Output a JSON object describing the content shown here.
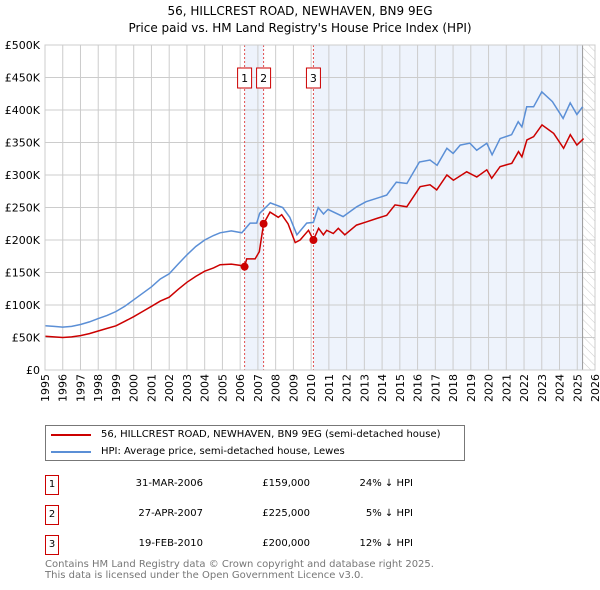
{
  "chart_data": {
    "type": "line",
    "title": "56, HILLCREST ROAD, NEWHAVEN, BN9 9EG",
    "subtitle": "Price paid vs. HM Land Registry's House Price Index (HPI)",
    "xlim": [
      1995,
      2026
    ],
    "ylim": [
      0,
      500000
    ],
    "grid": true,
    "x_ticks": [
      "1995",
      "1996",
      "1997",
      "1998",
      "1999",
      "2000",
      "2001",
      "2002",
      "2003",
      "2004",
      "2005",
      "2006",
      "2007",
      "2008",
      "2009",
      "2010",
      "2011",
      "2012",
      "2013",
      "2014",
      "2015",
      "2016",
      "2017",
      "2018",
      "2019",
      "2020",
      "2021",
      "2022",
      "2023",
      "2024",
      "2025",
      "2026"
    ],
    "y_ticks": [
      {
        "value": 0,
        "label": "£0"
      },
      {
        "value": 50000,
        "label": "£50K"
      },
      {
        "value": 100000,
        "label": "£100K"
      },
      {
        "value": 150000,
        "label": "£150K"
      },
      {
        "value": 200000,
        "label": "£200K"
      },
      {
        "value": 250000,
        "label": "£250K"
      },
      {
        "value": 300000,
        "label": "£300K"
      },
      {
        "value": 350000,
        "label": "£350K"
      },
      {
        "value": 400000,
        "label": "£400K"
      },
      {
        "value": 450000,
        "label": "£450K"
      },
      {
        "value": 500000,
        "label": "£500K"
      }
    ],
    "shaded_ranges": [
      [
        2006.25,
        2007.32
      ],
      [
        2010.13,
        2025.3
      ]
    ],
    "forecast_hatch_from": 2025.3,
    "series": [
      {
        "name": "56, HILLCREST ROAD, NEWHAVEN, BN9 9EG (semi-detached house)",
        "color": "#cc0000",
        "points": [
          [
            1995,
            52
          ],
          [
            1995.5,
            51
          ],
          [
            1996,
            50
          ],
          [
            1996.5,
            51
          ],
          [
            1997,
            53
          ],
          [
            1997.5,
            56
          ],
          [
            1998,
            60
          ],
          [
            1998.5,
            64
          ],
          [
            1999,
            68
          ],
          [
            1999.5,
            75
          ],
          [
            2000,
            82
          ],
          [
            2000.5,
            90
          ],
          [
            2001,
            98
          ],
          [
            2001.5,
            106
          ],
          [
            2002,
            112
          ],
          [
            2002.5,
            124
          ],
          [
            2003,
            135
          ],
          [
            2003.5,
            144
          ],
          [
            2004,
            152
          ],
          [
            2004.5,
            157
          ],
          [
            2004.87,
            162
          ],
          [
            2005.5,
            163
          ],
          [
            2006.0,
            161
          ],
          [
            2006.25,
            159
          ],
          [
            2006.37,
            171
          ],
          [
            2006.84,
            171
          ],
          [
            2007.08,
            182
          ],
          [
            2007.32,
            225
          ],
          [
            2007.68,
            243
          ],
          [
            2008.15,
            235
          ],
          [
            2008.34,
            239
          ],
          [
            2008.7,
            225
          ],
          [
            2009.1,
            196
          ],
          [
            2009.38,
            200
          ],
          [
            2009.85,
            215
          ],
          [
            2010.13,
            200
          ],
          [
            2010.42,
            218
          ],
          [
            2010.69,
            208
          ],
          [
            2010.88,
            215
          ],
          [
            2011.25,
            210
          ],
          [
            2011.53,
            218
          ],
          [
            2011.9,
            208
          ],
          [
            2012.56,
            223
          ],
          [
            2013.13,
            228
          ],
          [
            2013.69,
            233
          ],
          [
            2014.26,
            238
          ],
          [
            2014.73,
            254
          ],
          [
            2015.39,
            251
          ],
          [
            2016.14,
            282
          ],
          [
            2016.7,
            285
          ],
          [
            2017.08,
            277
          ],
          [
            2017.65,
            300
          ],
          [
            2018.02,
            292
          ],
          [
            2018.77,
            305
          ],
          [
            2019.34,
            297
          ],
          [
            2019.9,
            308
          ],
          [
            2020.18,
            295
          ],
          [
            2020.65,
            313
          ],
          [
            2021.31,
            318
          ],
          [
            2021.69,
            336
          ],
          [
            2021.88,
            328
          ],
          [
            2022.16,
            354
          ],
          [
            2022.54,
            359
          ],
          [
            2023.01,
            377
          ],
          [
            2023.67,
            364
          ],
          [
            2024.23,
            341
          ],
          [
            2024.61,
            362
          ],
          [
            2024.98,
            346
          ],
          [
            2025.36,
            356
          ]
        ]
      },
      {
        "name": "HPI: Average price, semi-detached house, Lewes",
        "color": "#5b8fd6",
        "points": [
          [
            1995,
            68
          ],
          [
            1995.5,
            67
          ],
          [
            1996,
            66
          ],
          [
            1996.5,
            67
          ],
          [
            1997,
            70
          ],
          [
            1997.5,
            74
          ],
          [
            1998,
            79
          ],
          [
            1998.5,
            84
          ],
          [
            1999,
            90
          ],
          [
            1999.5,
            98
          ],
          [
            2000,
            108
          ],
          [
            2000.5,
            118
          ],
          [
            2001,
            128
          ],
          [
            2001.5,
            140
          ],
          [
            2002,
            148
          ],
          [
            2002.5,
            163
          ],
          [
            2003,
            177
          ],
          [
            2003.5,
            190
          ],
          [
            2004,
            200
          ],
          [
            2004.5,
            207
          ],
          [
            2004.87,
            211
          ],
          [
            2005.5,
            214
          ],
          [
            2006.09,
            211
          ],
          [
            2006.56,
            226
          ],
          [
            2006.93,
            226
          ],
          [
            2007.1,
            241
          ],
          [
            2007.7,
            257
          ],
          [
            2008.4,
            250
          ],
          [
            2008.8,
            235
          ],
          [
            2009.2,
            208
          ],
          [
            2009.75,
            226
          ],
          [
            2010.13,
            227
          ],
          [
            2010.4,
            250
          ],
          [
            2010.7,
            240
          ],
          [
            2010.95,
            247
          ],
          [
            2011.8,
            236
          ],
          [
            2012.57,
            251
          ],
          [
            2013.1,
            259
          ],
          [
            2014.26,
            269
          ],
          [
            2014.8,
            289
          ],
          [
            2015.4,
            287
          ],
          [
            2016.1,
            320
          ],
          [
            2016.7,
            323
          ],
          [
            2017.1,
            315
          ],
          [
            2017.65,
            341
          ],
          [
            2018.0,
            333
          ],
          [
            2018.4,
            346
          ],
          [
            2018.95,
            349
          ],
          [
            2019.33,
            338
          ],
          [
            2019.9,
            349
          ],
          [
            2020.2,
            331
          ],
          [
            2020.65,
            356
          ],
          [
            2021.3,
            362
          ],
          [
            2021.67,
            382
          ],
          [
            2021.88,
            374
          ],
          [
            2022.15,
            405
          ],
          [
            2022.54,
            405
          ],
          [
            2023.0,
            428
          ],
          [
            2023.6,
            413
          ],
          [
            2024.2,
            387
          ],
          [
            2024.6,
            411
          ],
          [
            2024.98,
            393
          ],
          [
            2025.3,
            405
          ]
        ]
      }
    ],
    "units_note": "point values in £ thousands",
    "sales": [
      {
        "label": "1",
        "year": 2006.25,
        "price": 159000,
        "date": "31-MAR-2006",
        "price_text": "£159,000",
        "hpi_text": "24% ↓ HPI"
      },
      {
        "label": "2",
        "year": 2007.32,
        "price": 225000,
        "date": "27-APR-2007",
        "price_text": "£225,000",
        "hpi_text": "5% ↓ HPI"
      },
      {
        "label": "3",
        "year": 2010.13,
        "price": 200000,
        "date": "19-FEB-2010",
        "price_text": "£200,000",
        "hpi_text": "12% ↓ HPI"
      }
    ],
    "legend_position": "below"
  },
  "footer": {
    "line1": "Contains HM Land Registry data © Crown copyright and database right 2025.",
    "line2": "This data is licensed under the Open Government Licence v3.0."
  }
}
